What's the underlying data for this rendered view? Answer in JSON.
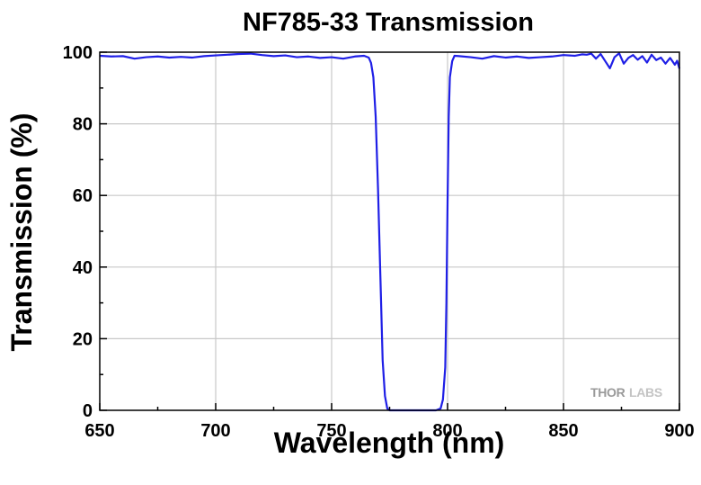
{
  "chart_data": {
    "type": "line",
    "title": "NF785-33 Transmission",
    "xlabel": "Wavelength (nm)",
    "ylabel": "Transmission (%)",
    "xlim": [
      650,
      900
    ],
    "ylim": [
      0,
      100
    ],
    "xticks": [
      650,
      700,
      750,
      800,
      850,
      900
    ],
    "yticks": [
      0,
      20,
      40,
      60,
      80,
      100
    ],
    "x_minor_step": 25,
    "y_minor_step": 10,
    "grid": true,
    "line_color": "#1f1fe6",
    "series": [
      {
        "x": [
          650,
          655,
          660,
          665,
          670,
          675,
          680,
          685,
          690,
          695,
          700,
          705,
          710,
          715,
          720,
          725,
          730,
          735,
          740,
          745,
          750,
          755,
          760,
          764,
          766,
          767,
          768,
          769,
          770,
          771,
          772,
          773,
          774,
          775,
          776,
          780,
          785,
          790,
          795,
          797,
          798,
          799,
          799.5,
          800,
          800.5,
          801,
          802,
          803,
          805,
          810,
          815,
          820,
          825,
          830,
          835,
          840,
          845,
          850,
          855,
          858,
          860,
          862,
          864,
          866,
          868,
          870,
          872,
          874,
          876,
          878,
          880,
          882,
          884,
          886,
          888,
          890,
          892,
          894,
          896,
          898,
          899,
          900
        ],
        "y": [
          99,
          98.8,
          98.9,
          98.2,
          98.6,
          98.8,
          98.5,
          98.7,
          98.5,
          98.9,
          99.1,
          99.3,
          99.5,
          99.6,
          99.2,
          98.9,
          99.1,
          98.6,
          98.8,
          98.4,
          98.6,
          98.2,
          98.8,
          99,
          98.5,
          97,
          93,
          82,
          62,
          38,
          14,
          4,
          0.5,
          0,
          0,
          0,
          0,
          0,
          0,
          0.5,
          3,
          12,
          30,
          58,
          82,
          93,
          97.5,
          99,
          98.9,
          98.6,
          98.2,
          98.9,
          98.5,
          98.8,
          98.4,
          98.6,
          98.8,
          99.2,
          99,
          99.4,
          99.3,
          99.6,
          98.2,
          99.5,
          97.5,
          95.5,
          98.6,
          99.7,
          96.8,
          98.4,
          99.2,
          97.9,
          98.9,
          97.1,
          99.3,
          97.8,
          98.5,
          96.8,
          98.4,
          96.5,
          97.6,
          95.4
        ]
      }
    ]
  },
  "watermark": {
    "brand_left": "THOR",
    "brand_right": "LABS"
  }
}
